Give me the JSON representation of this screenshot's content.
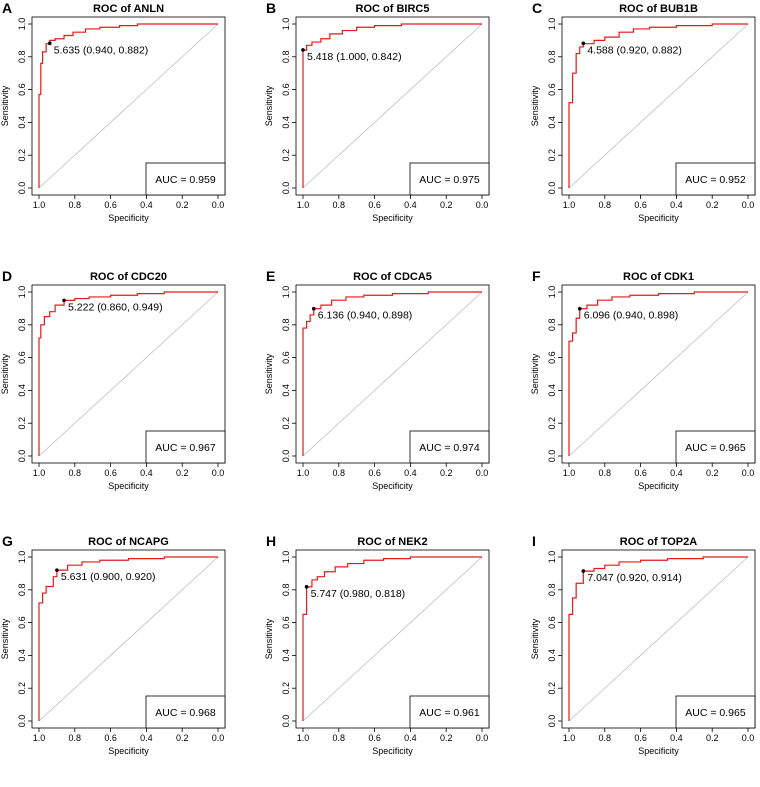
{
  "chart_data": [
    {
      "panel": "A",
      "type": "line",
      "title": "ROC of ANLN",
      "xlabel": "Specificity",
      "ylabel": "Sensitivity",
      "xlim": [
        1.0,
        0.0
      ],
      "ylim": [
        0.0,
        1.0
      ],
      "x_ticks": [
        "1.0",
        "0.8",
        "0.6",
        "0.4",
        "0.2",
        "0.0"
      ],
      "y_ticks": [
        "0.0",
        "0.2",
        "0.4",
        "0.6",
        "0.8",
        "1.0"
      ],
      "curve_color": "#e41a1c",
      "roc": {
        "specificity": [
          1.0,
          1.0,
          0.99,
          0.99,
          0.98,
          0.98,
          0.96,
          0.96,
          0.94,
          0.94,
          0.91,
          0.91,
          0.86,
          0.86,
          0.81,
          0.81,
          0.74,
          0.74,
          0.66,
          0.66,
          0.55,
          0.55,
          0.45,
          0.45,
          0.0
        ],
        "sensitivity": [
          0.0,
          0.57,
          0.57,
          0.76,
          0.76,
          0.83,
          0.83,
          0.88,
          0.88,
          0.9,
          0.9,
          0.91,
          0.91,
          0.93,
          0.93,
          0.95,
          0.95,
          0.97,
          0.97,
          0.98,
          0.98,
          0.99,
          0.99,
          1.0,
          1.0
        ]
      },
      "cutoff": {
        "specificity": 0.94,
        "sensitivity": 0.882,
        "label": "5.635 (0.940, 0.882)"
      },
      "auc_label": "AUC = 0.959"
    },
    {
      "panel": "B",
      "type": "line",
      "title": "ROC of BIRC5",
      "xlabel": "Specificity",
      "ylabel": "Sensitivity",
      "xlim": [
        1.0,
        0.0
      ],
      "ylim": [
        0.0,
        1.0
      ],
      "x_ticks": [
        "1.0",
        "0.8",
        "0.6",
        "0.4",
        "0.2",
        "0.0"
      ],
      "y_ticks": [
        "0.0",
        "0.2",
        "0.4",
        "0.6",
        "0.8",
        "1.0"
      ],
      "curve_color": "#e41a1c",
      "roc": {
        "specificity": [
          1.0,
          1.0,
          0.98,
          0.98,
          0.95,
          0.95,
          0.9,
          0.9,
          0.85,
          0.85,
          0.78,
          0.78,
          0.7,
          0.7,
          0.6,
          0.6,
          0.45,
          0.45,
          0.0
        ],
        "sensitivity": [
          0.0,
          0.84,
          0.84,
          0.87,
          0.87,
          0.89,
          0.89,
          0.91,
          0.91,
          0.94,
          0.94,
          0.96,
          0.96,
          0.98,
          0.98,
          0.99,
          0.99,
          1.0,
          1.0
        ]
      },
      "cutoff": {
        "specificity": 1.0,
        "sensitivity": 0.842,
        "label": "5.418 (1.000, 0.842)"
      },
      "auc_label": "AUC = 0.975"
    },
    {
      "panel": "C",
      "type": "line",
      "title": "ROC of BUB1B",
      "xlabel": "Specificity",
      "ylabel": "Sensitivity",
      "xlim": [
        1.0,
        0.0
      ],
      "ylim": [
        0.0,
        1.0
      ],
      "x_ticks": [
        "1.0",
        "0.8",
        "0.6",
        "0.4",
        "0.2",
        "0.0"
      ],
      "y_ticks": [
        "0.0",
        "0.2",
        "0.4",
        "0.6",
        "0.8",
        "1.0"
      ],
      "curve_color": "#e41a1c",
      "roc": {
        "specificity": [
          1.0,
          1.0,
          0.98,
          0.98,
          0.96,
          0.96,
          0.94,
          0.94,
          0.92,
          0.92,
          0.86,
          0.86,
          0.8,
          0.8,
          0.72,
          0.72,
          0.64,
          0.64,
          0.55,
          0.55,
          0.4,
          0.4,
          0.2,
          0.2,
          0.0
        ],
        "sensitivity": [
          0.0,
          0.52,
          0.52,
          0.7,
          0.7,
          0.82,
          0.82,
          0.86,
          0.86,
          0.88,
          0.88,
          0.9,
          0.9,
          0.92,
          0.92,
          0.95,
          0.95,
          0.97,
          0.97,
          0.98,
          0.98,
          0.99,
          0.99,
          1.0,
          1.0
        ]
      },
      "cutoff": {
        "specificity": 0.92,
        "sensitivity": 0.882,
        "label": "4.588 (0.920, 0.882)"
      },
      "auc_label": "AUC = 0.952"
    },
    {
      "panel": "D",
      "type": "line",
      "title": "ROC of CDC20",
      "xlabel": "Specificity",
      "ylabel": "Sensitivity",
      "xlim": [
        1.0,
        0.0
      ],
      "ylim": [
        0.0,
        1.0
      ],
      "x_ticks": [
        "1.0",
        "0.8",
        "0.6",
        "0.4",
        "0.2",
        "0.0"
      ],
      "y_ticks": [
        "0.0",
        "0.2",
        "0.4",
        "0.6",
        "0.8",
        "1.0"
      ],
      "curve_color": "#e41a1c",
      "roc": {
        "specificity": [
          1.0,
          1.0,
          0.99,
          0.99,
          0.97,
          0.97,
          0.94,
          0.94,
          0.91,
          0.91,
          0.86,
          0.86,
          0.8,
          0.8,
          0.72,
          0.72,
          0.6,
          0.6,
          0.45,
          0.45,
          0.3,
          0.3,
          0.0
        ],
        "sensitivity": [
          0.0,
          0.72,
          0.72,
          0.8,
          0.8,
          0.85,
          0.85,
          0.88,
          0.88,
          0.92,
          0.92,
          0.949,
          0.949,
          0.96,
          0.96,
          0.97,
          0.97,
          0.98,
          0.98,
          0.99,
          0.99,
          1.0,
          1.0
        ]
      },
      "cutoff": {
        "specificity": 0.86,
        "sensitivity": 0.949,
        "label": "5.222 (0.860, 0.949)"
      },
      "auc_label": "AUC = 0.967"
    },
    {
      "panel": "E",
      "type": "line",
      "title": "ROC of CDCA5",
      "xlabel": "Specificity",
      "ylabel": "Sensitivity",
      "xlim": [
        1.0,
        0.0
      ],
      "ylim": [
        0.0,
        1.0
      ],
      "x_ticks": [
        "1.0",
        "0.8",
        "0.6",
        "0.4",
        "0.2",
        "0.0"
      ],
      "y_ticks": [
        "0.0",
        "0.2",
        "0.4",
        "0.6",
        "0.8",
        "1.0"
      ],
      "curve_color": "#e41a1c",
      "roc": {
        "specificity": [
          1.0,
          1.0,
          0.98,
          0.98,
          0.96,
          0.96,
          0.94,
          0.94,
          0.9,
          0.9,
          0.84,
          0.84,
          0.76,
          0.76,
          0.66,
          0.66,
          0.5,
          0.5,
          0.3,
          0.3,
          0.0
        ],
        "sensitivity": [
          0.0,
          0.78,
          0.78,
          0.82,
          0.82,
          0.86,
          0.86,
          0.898,
          0.898,
          0.92,
          0.92,
          0.95,
          0.95,
          0.97,
          0.97,
          0.98,
          0.98,
          0.99,
          0.99,
          1.0,
          1.0
        ]
      },
      "cutoff": {
        "specificity": 0.94,
        "sensitivity": 0.898,
        "label": "6.136 (0.940, 0.898)"
      },
      "auc_label": "AUC = 0.974"
    },
    {
      "panel": "F",
      "type": "line",
      "title": "ROC of CDK1",
      "xlabel": "Specificity",
      "ylabel": "Sensitivity",
      "xlim": [
        1.0,
        0.0
      ],
      "ylim": [
        0.0,
        1.0
      ],
      "x_ticks": [
        "1.0",
        "0.8",
        "0.6",
        "0.4",
        "0.2",
        "0.0"
      ],
      "y_ticks": [
        "0.0",
        "0.2",
        "0.4",
        "0.6",
        "0.8",
        "1.0"
      ],
      "curve_color": "#e41a1c",
      "roc": {
        "specificity": [
          1.0,
          1.0,
          0.98,
          0.98,
          0.96,
          0.96,
          0.94,
          0.94,
          0.9,
          0.9,
          0.84,
          0.84,
          0.76,
          0.76,
          0.66,
          0.66,
          0.5,
          0.5,
          0.3,
          0.3,
          0.0
        ],
        "sensitivity": [
          0.0,
          0.7,
          0.7,
          0.75,
          0.75,
          0.84,
          0.84,
          0.898,
          0.898,
          0.92,
          0.92,
          0.95,
          0.95,
          0.97,
          0.97,
          0.98,
          0.98,
          0.99,
          0.99,
          1.0,
          1.0
        ]
      },
      "cutoff": {
        "specificity": 0.94,
        "sensitivity": 0.898,
        "label": "6.096 (0.940, 0.898)"
      },
      "auc_label": "AUC = 0.965"
    },
    {
      "panel": "G",
      "type": "line",
      "title": "ROC of NCAPG",
      "xlabel": "Specificity",
      "ylabel": "Sensitivity",
      "xlim": [
        1.0,
        0.0
      ],
      "ylim": [
        0.0,
        1.0
      ],
      "x_ticks": [
        "1.0",
        "0.8",
        "0.6",
        "0.4",
        "0.2",
        "0.0"
      ],
      "y_ticks": [
        "0.0",
        "0.2",
        "0.4",
        "0.6",
        "0.8",
        "1.0"
      ],
      "curve_color": "#e41a1c",
      "roc": {
        "specificity": [
          1.0,
          1.0,
          0.98,
          0.98,
          0.96,
          0.96,
          0.92,
          0.92,
          0.9,
          0.9,
          0.84,
          0.84,
          0.76,
          0.76,
          0.66,
          0.66,
          0.5,
          0.5,
          0.3,
          0.3,
          0.0
        ],
        "sensitivity": [
          0.0,
          0.72,
          0.72,
          0.78,
          0.78,
          0.82,
          0.82,
          0.88,
          0.88,
          0.92,
          0.92,
          0.95,
          0.95,
          0.97,
          0.97,
          0.98,
          0.98,
          0.99,
          0.99,
          1.0,
          1.0
        ]
      },
      "cutoff": {
        "specificity": 0.9,
        "sensitivity": 0.92,
        "label": "5.631 (0.900, 0.920)"
      },
      "auc_label": "AUC = 0.968"
    },
    {
      "panel": "H",
      "type": "line",
      "title": "ROC of NEK2",
      "xlabel": "Specificity",
      "ylabel": "Sensitivity",
      "xlim": [
        1.0,
        0.0
      ],
      "ylim": [
        0.0,
        1.0
      ],
      "x_ticks": [
        "1.0",
        "0.8",
        "0.6",
        "0.4",
        "0.2",
        "0.0"
      ],
      "y_ticks": [
        "0.0",
        "0.2",
        "0.4",
        "0.6",
        "0.8",
        "1.0"
      ],
      "curve_color": "#e41a1c",
      "roc": {
        "specificity": [
          1.0,
          1.0,
          0.98,
          0.98,
          0.95,
          0.95,
          0.92,
          0.92,
          0.88,
          0.88,
          0.82,
          0.82,
          0.75,
          0.75,
          0.66,
          0.66,
          0.55,
          0.55,
          0.4,
          0.4,
          0.0
        ],
        "sensitivity": [
          0.0,
          0.65,
          0.65,
          0.818,
          0.818,
          0.86,
          0.86,
          0.88,
          0.88,
          0.91,
          0.91,
          0.94,
          0.94,
          0.96,
          0.96,
          0.98,
          0.98,
          0.99,
          0.99,
          1.0,
          1.0
        ]
      },
      "cutoff": {
        "specificity": 0.98,
        "sensitivity": 0.818,
        "label": "5.747 (0.980, 0.818)"
      },
      "auc_label": "AUC = 0.961"
    },
    {
      "panel": "I",
      "type": "line",
      "title": "ROC of TOP2A",
      "xlabel": "Specificity",
      "ylabel": "Sensitivity",
      "xlim": [
        1.0,
        0.0
      ],
      "ylim": [
        0.0,
        1.0
      ],
      "x_ticks": [
        "1.0",
        "0.8",
        "0.6",
        "0.4",
        "0.2",
        "0.0"
      ],
      "y_ticks": [
        "0.0",
        "0.2",
        "0.4",
        "0.6",
        "0.8",
        "1.0"
      ],
      "curve_color": "#e41a1c",
      "roc": {
        "specificity": [
          1.0,
          1.0,
          0.98,
          0.98,
          0.96,
          0.96,
          0.92,
          0.92,
          0.86,
          0.86,
          0.8,
          0.8,
          0.72,
          0.72,
          0.6,
          0.6,
          0.45,
          0.45,
          0.25,
          0.25,
          0.0
        ],
        "sensitivity": [
          0.0,
          0.65,
          0.65,
          0.75,
          0.75,
          0.84,
          0.84,
          0.914,
          0.914,
          0.93,
          0.93,
          0.95,
          0.95,
          0.97,
          0.97,
          0.98,
          0.98,
          0.99,
          0.99,
          1.0,
          1.0
        ]
      },
      "cutoff": {
        "specificity": 0.92,
        "sensitivity": 0.914,
        "label": "7.047 (0.920, 0.914)"
      },
      "auc_label": "AUC = 0.965"
    }
  ]
}
